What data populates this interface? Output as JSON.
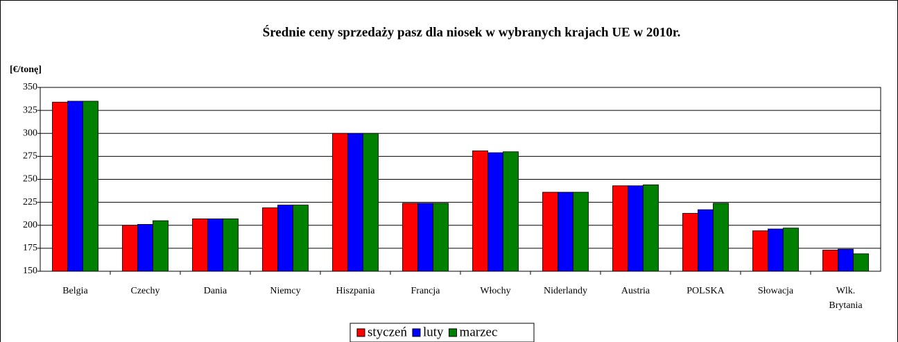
{
  "chart_data": {
    "type": "bar",
    "title": "Średnie ceny sprzedaży pasz dla niosek w wybranych krajach UE w 2010r.",
    "y_label": "[€/tonę]",
    "categories": [
      "Belgia",
      "Czechy",
      "Dania",
      "Niemcy",
      "Hiszpania",
      "Francja",
      "Włochy",
      "Niderlandy",
      "Austria",
      "POLSKA",
      "Słowacja",
      "Wlk. Brytania"
    ],
    "series": [
      {
        "name": "styczeń",
        "color": "#ff0000",
        "values": [
          334,
          200,
          207,
          219,
          300,
          224,
          281,
          236,
          243,
          213,
          194,
          173
        ]
      },
      {
        "name": "luty",
        "color": "#0000ff",
        "values": [
          335,
          201,
          207,
          222,
          300,
          224,
          279,
          236,
          243,
          217,
          196,
          174
        ]
      },
      {
        "name": "marzec",
        "color": "#008000",
        "values": [
          335,
          205,
          207,
          222,
          300,
          224,
          280,
          236,
          244,
          224,
          197,
          169
        ]
      }
    ],
    "ylim": [
      150,
      350
    ],
    "yticks": [
      150,
      175,
      200,
      225,
      250,
      275,
      300,
      325,
      350
    ],
    "grid": true,
    "legend": "bottom"
  }
}
